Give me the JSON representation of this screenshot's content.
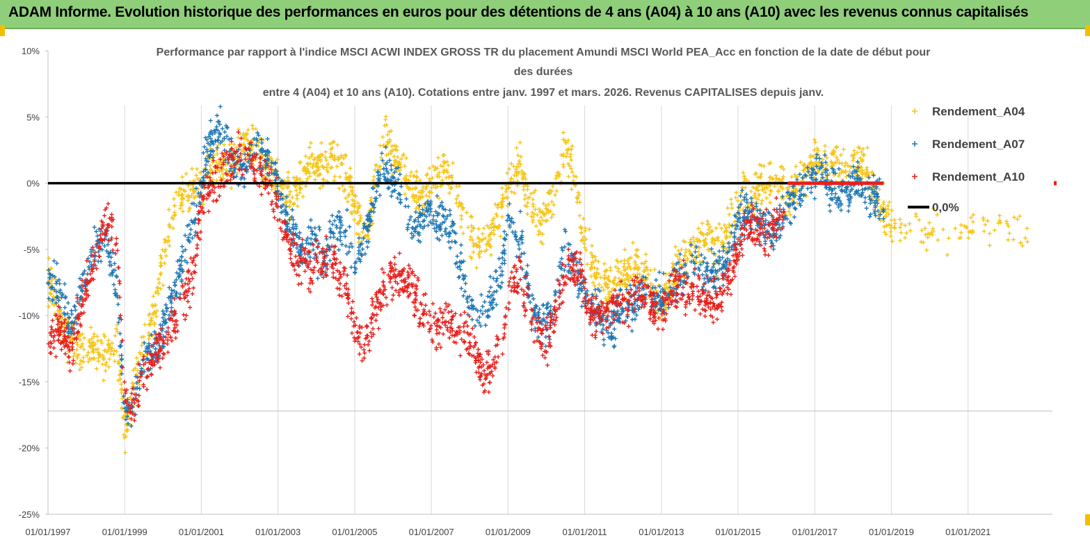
{
  "banner": {
    "title": "ADAM Informe. Evolution historique des performances en euros pour des détentions de 4 ans (A04) à 10 ans (A10) avec les revenus connus capitalisés"
  },
  "colors": {
    "banner_bg": "#8fcf7a",
    "a04": "#f5c518",
    "a07": "#1f77b4",
    "a10": "#e8201c",
    "zero": "#000000"
  },
  "chart_data": {
    "type": "scatter",
    "title_lines": [
      "Performance par rapport à l'indice MSCI ACWI INDEX GROSS TR  du placement Amundi MSCI World PEA_Acc en fonction de la date de début pour",
      "des durées",
      "entre 4 (A04) et 10 ans (A10). Cotations entre janv. 1997 et mars. 2026. Revenus CAPITALISES depuis janv."
    ],
    "xlim": [
      1997.0,
      2023.2
    ],
    "ylim": [
      -25,
      10
    ],
    "x_tick_labels": [
      "01/01/1997",
      "01/01/1999",
      "01/01/2001",
      "01/01/2003",
      "01/01/2005",
      "01/01/2007",
      "01/01/2009",
      "01/01/2011",
      "01/01/2013",
      "01/01/2015",
      "01/01/2017",
      "01/01/2019",
      "01/01/2021"
    ],
    "x_tick_values": [
      1997,
      1999,
      2001,
      2003,
      2005,
      2007,
      2009,
      2011,
      2013,
      2015,
      2017,
      2019,
      2021
    ],
    "y_tick_labels": [
      "10%",
      "5%",
      "0%",
      "-5%",
      "-10%",
      "-15%",
      "-20%",
      "-25%"
    ],
    "y_tick_values": [
      10,
      5,
      0,
      -5,
      -10,
      -15,
      -20,
      -25
    ],
    "series": [
      {
        "name": "Rendement_A04",
        "color": "#f5c518",
        "x_end": 2022.6,
        "points": [
          [
            1997.0,
            -7
          ],
          [
            1997.3,
            -10
          ],
          [
            1997.6,
            -12
          ],
          [
            1997.9,
            -13
          ],
          [
            1998.2,
            -12.5
          ],
          [
            1998.5,
            -13
          ],
          [
            1998.8,
            -12
          ],
          [
            1999.0,
            -19
          ],
          [
            1999.2,
            -16
          ],
          [
            1999.5,
            -12
          ],
          [
            1999.8,
            -9
          ],
          [
            2000.0,
            -6
          ],
          [
            2000.2,
            -3
          ],
          [
            2000.5,
            -1
          ],
          [
            2000.8,
            -0.5
          ],
          [
            2001.0,
            0
          ],
          [
            2001.3,
            1
          ],
          [
            2001.6,
            1.5
          ],
          [
            2001.9,
            2
          ],
          [
            2002.2,
            3
          ],
          [
            2002.5,
            2
          ],
          [
            2002.8,
            1
          ],
          [
            2003.0,
            0
          ],
          [
            2003.3,
            -1
          ],
          [
            2003.6,
            0
          ],
          [
            2003.9,
            1.5
          ],
          [
            2004.2,
            1
          ],
          [
            2004.5,
            2
          ],
          [
            2004.8,
            0
          ],
          [
            2005.0,
            -2
          ],
          [
            2005.3,
            -4
          ],
          [
            2005.6,
            1
          ],
          [
            2005.8,
            3
          ],
          [
            2006.1,
            2
          ],
          [
            2006.4,
            0
          ],
          [
            2006.7,
            -1
          ],
          [
            2007.0,
            0
          ],
          [
            2007.3,
            1
          ],
          [
            2007.6,
            0
          ],
          [
            2007.9,
            -3
          ],
          [
            2008.2,
            -5
          ],
          [
            2008.5,
            -4
          ],
          [
            2008.8,
            -2
          ],
          [
            2009.0,
            0
          ],
          [
            2009.3,
            1
          ],
          [
            2009.6,
            -2
          ],
          [
            2009.9,
            -3
          ],
          [
            2010.2,
            -1
          ],
          [
            2010.5,
            3
          ],
          [
            2010.7,
            1
          ],
          [
            2010.9,
            -3
          ],
          [
            2011.2,
            -6
          ],
          [
            2011.5,
            -8
          ],
          [
            2011.8,
            -7
          ],
          [
            2012.1,
            -7
          ],
          [
            2012.4,
            -6
          ],
          [
            2012.7,
            -8
          ],
          [
            2013.0,
            -9
          ],
          [
            2013.3,
            -7
          ],
          [
            2013.6,
            -6
          ],
          [
            2013.9,
            -5
          ],
          [
            2014.2,
            -4
          ],
          [
            2014.5,
            -5
          ],
          [
            2014.8,
            -3
          ],
          [
            2015.1,
            -1
          ],
          [
            2015.4,
            -1
          ],
          [
            2015.7,
            0
          ],
          [
            2016.0,
            0
          ],
          [
            2016.3,
            -1
          ],
          [
            2016.6,
            0
          ],
          [
            2016.9,
            1.5
          ],
          [
            2017.2,
            2
          ],
          [
            2017.5,
            1.5
          ],
          [
            2017.8,
            1
          ],
          [
            2018.1,
            1.5
          ],
          [
            2018.4,
            1
          ],
          [
            2018.7,
            -2
          ],
          [
            2019.0,
            -3
          ],
          [
            2019.4,
            -3.5
          ],
          [
            2019.8,
            -3.5
          ],
          [
            2020.2,
            -4
          ],
          [
            2020.6,
            -3.5
          ],
          [
            2021.0,
            -3.5
          ],
          [
            2021.4,
            -3
          ],
          [
            2021.8,
            -3.5
          ],
          [
            2022.2,
            -3.5
          ],
          [
            2022.6,
            -4
          ]
        ]
      },
      {
        "name": "Rendement_A07",
        "color": "#1f77b4",
        "x_end": 2018.8,
        "points": [
          [
            1997.0,
            -7
          ],
          [
            1997.3,
            -8
          ],
          [
            1997.6,
            -11
          ],
          [
            1997.9,
            -8
          ],
          [
            1998.2,
            -5
          ],
          [
            1998.5,
            -4
          ],
          [
            1998.8,
            -8
          ],
          [
            1999.0,
            -17
          ],
          [
            1999.2,
            -17
          ],
          [
            1999.5,
            -13
          ],
          [
            1999.8,
            -13
          ],
          [
            2000.0,
            -11
          ],
          [
            2000.2,
            -9
          ],
          [
            2000.5,
            -6
          ],
          [
            2000.8,
            -3
          ],
          [
            2001.0,
            0
          ],
          [
            2001.2,
            3
          ],
          [
            2001.5,
            4
          ],
          [
            2001.8,
            2
          ],
          [
            2002.1,
            1
          ],
          [
            2002.4,
            3
          ],
          [
            2002.7,
            2
          ],
          [
            2003.0,
            0
          ],
          [
            2003.3,
            -3
          ],
          [
            2003.6,
            -5
          ],
          [
            2003.9,
            -4
          ],
          [
            2004.2,
            -6
          ],
          [
            2004.5,
            -3
          ],
          [
            2004.8,
            -4
          ],
          [
            2005.0,
            -6
          ],
          [
            2005.3,
            -4
          ],
          [
            2005.6,
            0
          ],
          [
            2005.8,
            1
          ],
          [
            2006.1,
            0
          ],
          [
            2006.4,
            -3
          ],
          [
            2006.7,
            -3
          ],
          [
            2007.0,
            -2
          ],
          [
            2007.3,
            -3
          ],
          [
            2007.6,
            -4
          ],
          [
            2007.9,
            -8
          ],
          [
            2008.2,
            -10
          ],
          [
            2008.5,
            -9
          ],
          [
            2008.8,
            -7
          ],
          [
            2009.0,
            -3
          ],
          [
            2009.3,
            -4
          ],
          [
            2009.6,
            -9
          ],
          [
            2009.9,
            -11
          ],
          [
            2010.2,
            -9
          ],
          [
            2010.5,
            -5
          ],
          [
            2010.8,
            -7
          ],
          [
            2011.1,
            -9
          ],
          [
            2011.4,
            -10
          ],
          [
            2011.7,
            -11
          ],
          [
            2012.0,
            -9
          ],
          [
            2012.3,
            -9
          ],
          [
            2012.6,
            -8
          ],
          [
            2012.9,
            -9
          ],
          [
            2013.2,
            -8
          ],
          [
            2013.5,
            -7
          ],
          [
            2013.8,
            -6
          ],
          [
            2014.1,
            -7
          ],
          [
            2014.4,
            -7
          ],
          [
            2014.7,
            -6
          ],
          [
            2015.0,
            -3
          ],
          [
            2015.3,
            -2
          ],
          [
            2015.6,
            -3
          ],
          [
            2015.9,
            -4
          ],
          [
            2016.2,
            -2
          ],
          [
            2016.5,
            -1
          ],
          [
            2016.8,
            0
          ],
          [
            2017.1,
            1
          ],
          [
            2017.4,
            0
          ],
          [
            2017.7,
            -1
          ],
          [
            2018.0,
            0
          ],
          [
            2018.3,
            0
          ],
          [
            2018.6,
            -1
          ],
          [
            2018.8,
            -2
          ]
        ]
      },
      {
        "name": "Rendement_A10",
        "color": "#e8201c",
        "x_end": 2016.2,
        "points": [
          [
            1997.0,
            -12
          ],
          [
            1997.3,
            -11
          ],
          [
            1997.6,
            -13
          ],
          [
            1997.9,
            -9
          ],
          [
            1998.2,
            -6
          ],
          [
            1998.5,
            -3
          ],
          [
            1998.8,
            -4
          ],
          [
            1999.0,
            -16
          ],
          [
            1999.2,
            -17
          ],
          [
            1999.5,
            -14
          ],
          [
            1999.8,
            -13
          ],
          [
            2000.0,
            -12
          ],
          [
            2000.2,
            -11
          ],
          [
            2000.5,
            -9
          ],
          [
            2000.8,
            -7
          ],
          [
            2001.0,
            -2
          ],
          [
            2001.3,
            0
          ],
          [
            2001.6,
            1
          ],
          [
            2001.9,
            2
          ],
          [
            2002.2,
            2
          ],
          [
            2002.5,
            1
          ],
          [
            2002.8,
            0
          ],
          [
            2003.0,
            -2
          ],
          [
            2003.3,
            -5
          ],
          [
            2003.6,
            -6
          ],
          [
            2003.9,
            -6
          ],
          [
            2004.2,
            -6
          ],
          [
            2004.5,
            -6
          ],
          [
            2004.8,
            -8
          ],
          [
            2005.0,
            -11
          ],
          [
            2005.3,
            -12
          ],
          [
            2005.6,
            -9
          ],
          [
            2005.9,
            -7
          ],
          [
            2006.2,
            -7
          ],
          [
            2006.5,
            -8
          ],
          [
            2006.8,
            -10
          ],
          [
            2007.1,
            -11
          ],
          [
            2007.4,
            -10
          ],
          [
            2007.7,
            -11
          ],
          [
            2008.0,
            -12
          ],
          [
            2008.3,
            -14
          ],
          [
            2008.6,
            -14
          ],
          [
            2008.9,
            -11
          ],
          [
            2009.1,
            -7
          ],
          [
            2009.4,
            -8
          ],
          [
            2009.7,
            -11
          ],
          [
            2010.0,
            -12
          ],
          [
            2010.3,
            -9
          ],
          [
            2010.6,
            -6
          ],
          [
            2010.9,
            -7
          ],
          [
            2011.2,
            -10
          ],
          [
            2011.5,
            -10
          ],
          [
            2011.8,
            -9
          ],
          [
            2012.1,
            -9
          ],
          [
            2012.4,
            -8
          ],
          [
            2012.7,
            -9
          ],
          [
            2013.0,
            -10
          ],
          [
            2013.3,
            -8
          ],
          [
            2013.6,
            -8
          ],
          [
            2013.9,
            -8
          ],
          [
            2014.2,
            -9
          ],
          [
            2014.5,
            -9
          ],
          [
            2014.8,
            -7
          ],
          [
            2015.1,
            -4
          ],
          [
            2015.4,
            -3
          ],
          [
            2015.7,
            -4
          ],
          [
            2016.0,
            -3
          ],
          [
            2016.2,
            -3
          ]
        ]
      }
    ],
    "reference_line": {
      "name": "0,0%",
      "y": 0,
      "x_from": 1997.0,
      "x_to": 2016.3
    },
    "red_baseline": {
      "y": 0,
      "x_from": 2016.3,
      "x_to": 2018.8
    }
  }
}
